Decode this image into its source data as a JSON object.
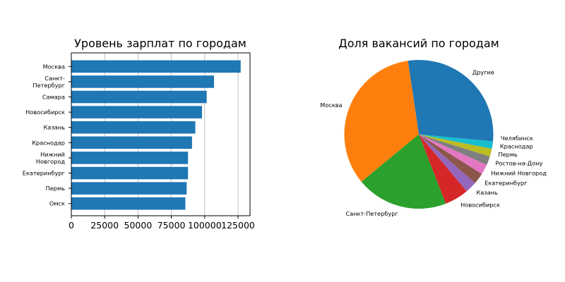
{
  "chart_data": [
    {
      "type": "bar",
      "orientation": "horizontal",
      "title": "Уровень зарплат по городам",
      "categories": [
        "Москва",
        "Санкт-\nПетербург",
        "Самара",
        "Новосибирск",
        "Казань",
        "Краснодар",
        "Нижний\nНовгород",
        "Екатеринбург",
        "Пермь",
        "Омск"
      ],
      "values": [
        127000,
        107000,
        101500,
        98000,
        93000,
        90500,
        87500,
        87500,
        86500,
        85500
      ],
      "xlim": [
        0,
        134000
      ],
      "xticks": [
        0,
        25000,
        50000,
        75000,
        100000,
        125000
      ],
      "xtick_labels": [
        "0",
        "25000",
        "50000",
        "75000",
        "100000",
        "125000"
      ],
      "grid": "x",
      "colors": {
        "bar": "#1f77b4",
        "grid": "#b0b0b0"
      }
    },
    {
      "type": "pie",
      "title": "Доля вакансий по городам",
      "start_angle_deg": 0,
      "direction": "counterclockwise",
      "slices": [
        {
          "label": "Другие",
          "value": 27.2,
          "color": "#1f77b4"
        },
        {
          "label": "Москва",
          "value": 33.5,
          "color": "#ff7f0e"
        },
        {
          "label": "Санкт-Петербург",
          "value": 19.8,
          "color": "#2ca02c"
        },
        {
          "label": "Новосибирск",
          "value": 5.2,
          "color": "#d62728"
        },
        {
          "label": "Казань",
          "value": 2.5,
          "color": "#9467bd"
        },
        {
          "label": "Екатеринбург",
          "value": 2.4,
          "color": "#8c564b"
        },
        {
          "label": "Нижний Новгород",
          "value": 2.2,
          "color": "#e377c2"
        },
        {
          "label": "Ростов-на-Дону",
          "value": 1.9,
          "color": "#7f7f7f"
        },
        {
          "label": "Пермь",
          "value": 1.7,
          "color": "#bcbd22"
        },
        {
          "label": "Краснодар",
          "value": 1.6,
          "color": "#17becf"
        },
        {
          "label": "Челябинск",
          "value": 1.5,
          "color": "#1f77b4"
        }
      ]
    }
  ]
}
